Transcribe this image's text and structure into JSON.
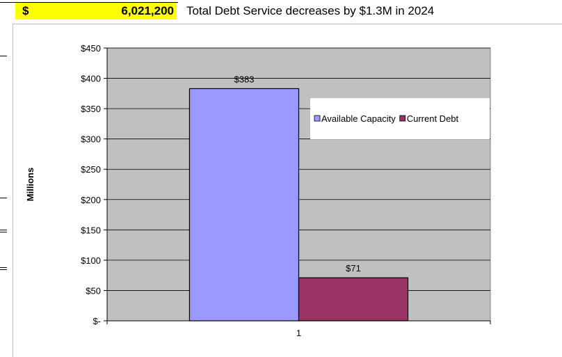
{
  "header": {
    "dollar_sign": "$",
    "amount": "6,021,200",
    "note": "Total Debt Service decreases by $1.3M in 2024",
    "highlight_color": "#ffff00"
  },
  "chart_data": {
    "type": "bar",
    "categories": [
      "1"
    ],
    "series": [
      {
        "name": "Available Capacity",
        "values": [
          383
        ],
        "color": "#9999ff",
        "data_label": "$383"
      },
      {
        "name": "Current Debt",
        "values": [
          71
        ],
        "color": "#993366",
        "data_label": "$71"
      }
    ],
    "title": "",
    "xlabel": "",
    "ylabel": "Millions",
    "ylim": [
      0,
      450
    ],
    "yticks": [
      0,
      50,
      100,
      150,
      200,
      250,
      300,
      350,
      400,
      450
    ],
    "ytick_labels": [
      "$-",
      "$50",
      "$100",
      "$150",
      "$200",
      "$250",
      "$300",
      "$350",
      "$400",
      "$450"
    ],
    "grid": true,
    "plot_background": "#c0c0c0",
    "legend_position": "right"
  }
}
